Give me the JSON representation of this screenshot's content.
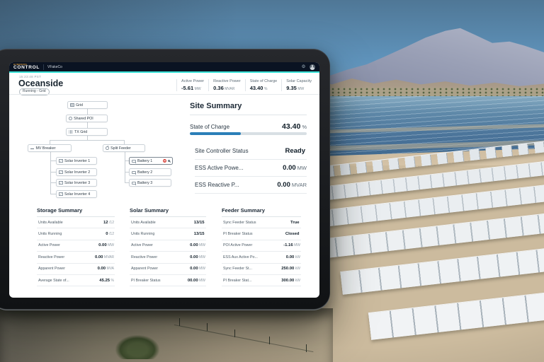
{
  "nav": {
    "brand_small": "HYBRIDOS",
    "brand_main": "CONTROL",
    "company": "VFakeCo",
    "icons": [
      "gear-icon",
      "user-avatar"
    ]
  },
  "header": {
    "timestamp": "15:23:48 PST",
    "title": "Oceanside",
    "status_badge": "Running - Grid",
    "metrics": [
      {
        "label": "Active Power",
        "value": "-5.61",
        "unit": "MW"
      },
      {
        "label": "Reactive Power",
        "value": "0.36",
        "unit": "MVAR"
      },
      {
        "label": "State of Charge",
        "value": "43.40",
        "unit": "%"
      },
      {
        "label": "Solar Capacity",
        "value": "9.35",
        "unit": "MW"
      }
    ]
  },
  "diagram": {
    "nodes": [
      {
        "label": "Grid",
        "icon": "grid-icon"
      },
      {
        "label": "Shared POI",
        "icon": "poi-icon"
      },
      {
        "label": "TX Grid",
        "icon": "tx-grid-icon"
      },
      {
        "label": "MV Breaker",
        "icon": "breaker-icon"
      },
      {
        "label": "Split Feeder",
        "icon": "feeder-icon"
      },
      {
        "label": "Solar Inverter 1",
        "icon": "inverter-icon"
      },
      {
        "label": "Solar Inverter 2",
        "icon": "inverter-icon"
      },
      {
        "label": "Solar Inverter 3",
        "icon": "inverter-icon"
      },
      {
        "label": "Solar Inverter 4",
        "icon": "inverter-icon"
      },
      {
        "label": "Battery 1",
        "icon": "battery-icon",
        "alert": true,
        "maintenance": true
      },
      {
        "label": "Battery 2",
        "icon": "battery-icon"
      },
      {
        "label": "Battery 3",
        "icon": "battery-icon"
      }
    ]
  },
  "site_summary": {
    "title": "Site Summary",
    "soc": {
      "label": "State of Charge",
      "value": "43.40",
      "unit": "%",
      "percent": 43.4
    },
    "rows": [
      {
        "label": "Site Controller Status",
        "value": "Ready",
        "unit": ""
      },
      {
        "label": "ESS Active Powe...",
        "value": "0.00",
        "unit": "MW"
      },
      {
        "label": "ESS Reactive P...",
        "value": "0.00",
        "unit": "MVAR"
      }
    ]
  },
  "storage_summary": {
    "title": "Storage Summary",
    "rows": [
      {
        "label": "Units Available",
        "value": "12",
        "unit": "/12"
      },
      {
        "label": "Units Running",
        "value": "0",
        "unit": "/12"
      },
      {
        "label": "Active Power",
        "value": "0.00",
        "unit": "MW"
      },
      {
        "label": "Reactive Power",
        "value": "0.00",
        "unit": "MVAR"
      },
      {
        "label": "Apparent Power",
        "value": "0.00",
        "unit": "MVA"
      },
      {
        "label": "Average State of...",
        "value": "45.25",
        "unit": "%"
      }
    ]
  },
  "solar_summary": {
    "title": "Solar Summary",
    "rows": [
      {
        "label": "Units Available",
        "value": "13/15",
        "unit": ""
      },
      {
        "label": "Units Running",
        "value": "13/15",
        "unit": ""
      },
      {
        "label": "Active Power",
        "value": "0.00",
        "unit": "MW"
      },
      {
        "label": "Reactive Power",
        "value": "0.00",
        "unit": "MW"
      },
      {
        "label": "Apparent Power",
        "value": "0.00",
        "unit": "MW"
      },
      {
        "label": "PI Breaker Status",
        "value": "00.00",
        "unit": "MW"
      }
    ]
  },
  "feeder_summary": {
    "title": "Feeder Summary",
    "rows": [
      {
        "label": "Sync Feeder Status",
        "value": "True",
        "unit": ""
      },
      {
        "label": "PI Breaker Status",
        "value": "Closed",
        "unit": ""
      },
      {
        "label": "POI Active Power",
        "value": "-1.16",
        "unit": "MW"
      },
      {
        "label": "ESS Aux Active Po...",
        "value": "0.00",
        "unit": "kW"
      },
      {
        "label": "Sync Feeder St...",
        "value": "250.00",
        "unit": "kW"
      },
      {
        "label": "PI Breaker Stat...",
        "value": "300.00",
        "unit": "kW"
      }
    ]
  },
  "colors": {
    "nav_bg": "#0a1322",
    "accent_teal": "#38e1d6",
    "progress_blue": "#2b7fb8",
    "alert_red": "#d8453e",
    "brand_amber": "#e8a33d"
  }
}
